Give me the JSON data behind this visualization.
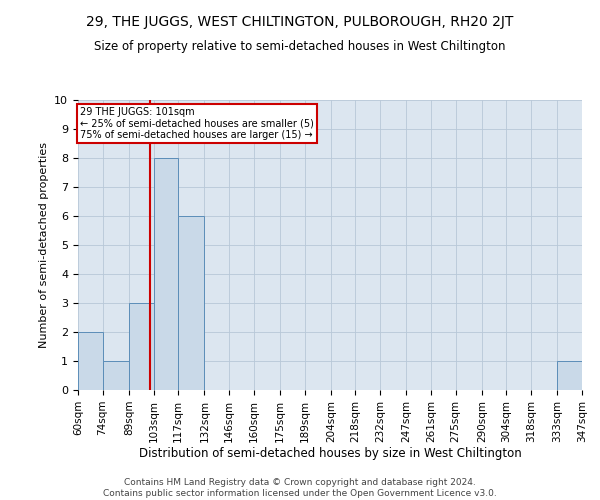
{
  "title": "29, THE JUGGS, WEST CHILTINGTON, PULBOROUGH, RH20 2JT",
  "subtitle": "Size of property relative to semi-detached houses in West Chiltington",
  "xlabel": "Distribution of semi-detached houses by size in West Chiltington",
  "ylabel": "Number of semi-detached properties",
  "footer_line1": "Contains HM Land Registry data © Crown copyright and database right 2024.",
  "footer_line2": "Contains public sector information licensed under the Open Government Licence v3.0.",
  "annotation_line1": "29 THE JUGGS: 101sqm",
  "annotation_line2": "← 25% of semi-detached houses are smaller (5)",
  "annotation_line3": "75% of semi-detached houses are larger (15) →",
  "property_size": 101,
  "bar_color": "#c9d9e8",
  "bar_edge_color": "#5b8db8",
  "highlight_line_color": "#cc0000",
  "annotation_box_color": "#cc0000",
  "background_color": "#dce6f0",
  "bins": [
    60,
    74,
    89,
    103,
    117,
    132,
    146,
    160,
    175,
    189,
    204,
    218,
    232,
    247,
    261,
    275,
    290,
    304,
    318,
    333,
    347
  ],
  "values": [
    2,
    1,
    3,
    8,
    6,
    0,
    0,
    0,
    0,
    0,
    0,
    0,
    0,
    0,
    0,
    0,
    0,
    0,
    0,
    1
  ],
  "ylim": [
    0,
    10
  ],
  "yticks": [
    0,
    1,
    2,
    3,
    4,
    5,
    6,
    7,
    8,
    9,
    10
  ]
}
